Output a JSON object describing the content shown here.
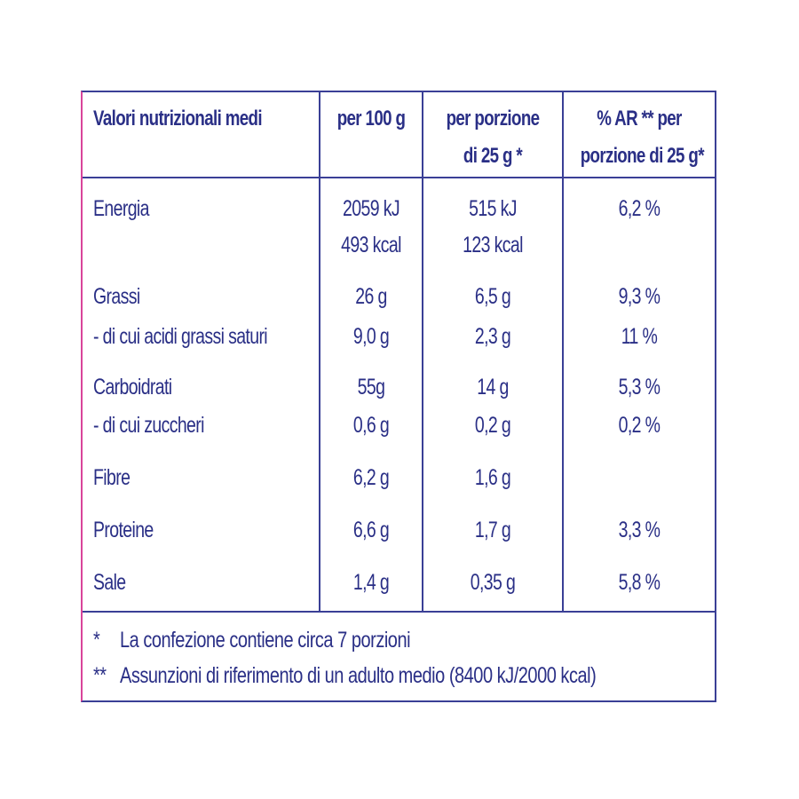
{
  "headers": {
    "col1": "Valori nutrizionali medi",
    "col2": "per 100 g",
    "col3_line1": "per porzione",
    "col3_line2": "di 25 g *",
    "col4_line1": "% AR ** per",
    "col4_line2": "porzione di 25 g*"
  },
  "rows": [
    {
      "label": "Energia",
      "per100_1": "2059 kJ",
      "per100_2": "493 kcal",
      "portion_1": "515 kJ",
      "portion_2": "123 kcal",
      "ar": "6,2 %"
    },
    {
      "label": "Grassi",
      "per100": "26 g",
      "portion": "6,5 g",
      "ar": "9,3 %"
    },
    {
      "label": "- di cui acidi grassi saturi",
      "per100": "9,0 g",
      "portion": "2,3 g",
      "ar": "11 %"
    },
    {
      "label": "Carboidrati",
      "per100": "55g",
      "portion": "14 g",
      "ar": "5,3 %"
    },
    {
      "label": "- di cui zuccheri",
      "per100": "0,6 g",
      "portion": "0,2 g",
      "ar": "0,2 %"
    },
    {
      "label": "Fibre",
      "per100": "6,2 g",
      "portion": "1,6 g",
      "ar": ""
    },
    {
      "label": "Proteine",
      "per100": "6,6 g",
      "portion": "1,7 g",
      "ar": "3,3 %"
    },
    {
      "label": "Sale",
      "per100": "1,4 g",
      "portion": "0,35 g",
      "ar": "5,8 %"
    }
  ],
  "footnotes": {
    "note1_mark": "*",
    "note1_text": "La confezione contiene circa 7 porzioni",
    "note2_mark": "**",
    "note2_text": "Assunzioni di riferimento di un adulto medio (8400 kJ/2000 kcal)"
  },
  "colors": {
    "text": "#2a2f86",
    "border": "#3a3f96",
    "accent_left_border": "#d9449a"
  }
}
